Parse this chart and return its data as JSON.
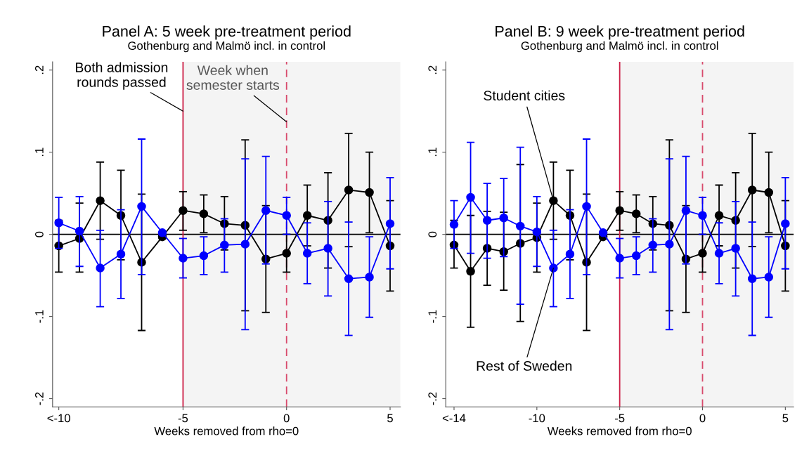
{
  "chart_data": [
    {
      "type": "line",
      "title": "Panel A: 5 week pre-treatment period",
      "subtitle": "Gothenburg and Malmö incl. in control",
      "xlabel": "Weeks removed from rho=0",
      "x": [
        -11,
        -10,
        -9,
        -8,
        -7,
        -6,
        -5,
        -4,
        -3,
        -2,
        -1,
        0,
        1,
        2,
        3,
        4,
        5
      ],
      "series": [
        {
          "color": "#000000",
          "values": [
            -0.014,
            -0.005,
            0.041,
            0.023,
            -0.034,
            -0.003,
            0.029,
            0.025,
            0.013,
            0.011,
            -0.03,
            -0.023,
            0.023,
            0.017,
            0.054,
            0.051,
            -0.014
          ],
          "errors": [
            [
              -0.046,
              0.017
            ],
            [
              -0.046,
              0.038
            ],
            [
              -0.006,
              0.088
            ],
            [
              -0.031,
              0.078
            ],
            [
              -0.117,
              0.049
            ],
            null,
            [
              0.005,
              0.052
            ],
            [
              0.002,
              0.048
            ],
            [
              -0.019,
              0.046
            ],
            [
              -0.093,
              0.115
            ],
            [
              -0.095,
              0.035
            ],
            [
              -0.046,
              0.0
            ],
            [
              -0.014,
              0.06
            ],
            [
              -0.041,
              0.075
            ],
            [
              -0.015,
              0.123
            ],
            [
              0.002,
              0.1
            ],
            [
              -0.069,
              0.041
            ]
          ]
        },
        {
          "color": "#0000ff",
          "values": [
            0.014,
            0.004,
            -0.041,
            -0.024,
            0.034,
            0.002,
            -0.029,
            -0.026,
            -0.013,
            -0.012,
            0.029,
            0.023,
            -0.023,
            -0.017,
            -0.054,
            -0.052,
            0.013
          ],
          "errors": [
            [
              -0.017,
              0.045
            ],
            [
              -0.039,
              0.046
            ],
            [
              -0.088,
              0.005
            ],
            [
              -0.078,
              0.03
            ],
            [
              -0.049,
              0.116
            ],
            null,
            [
              -0.053,
              -0.005
            ],
            [
              -0.049,
              -0.003
            ],
            [
              -0.046,
              0.019
            ],
            [
              -0.116,
              0.092
            ],
            [
              -0.036,
              0.095
            ],
            [
              0.0,
              0.045
            ],
            [
              -0.06,
              0.014
            ],
            [
              -0.075,
              0.04
            ],
            [
              -0.123,
              0.015
            ],
            [
              -0.101,
              -0.003
            ],
            [
              -0.042,
              0.069
            ]
          ]
        }
      ],
      "xlim": [
        -11.3,
        5.5
      ],
      "xticks": [
        {
          "value": -11,
          "label": "<-10"
        },
        -5,
        0,
        5
      ],
      "ylim": [
        -0.21,
        0.21
      ],
      "yticks": [
        {
          "value": -0.2,
          "label": "-.2"
        },
        {
          "value": -0.1,
          "label": "-.1"
        },
        0,
        {
          "value": 0.1,
          "label": ".1"
        },
        {
          "value": 0.2,
          "label": ".2"
        }
      ],
      "ref_lines": [
        {
          "axis": "y",
          "value": 0,
          "color": "#000000"
        },
        {
          "axis": "x",
          "value": -5,
          "color": "#cc1f45",
          "line_style": "solid"
        },
        {
          "axis": "x",
          "value": 0,
          "color": "#d84a6c",
          "line_style": "dashed"
        }
      ],
      "bands": [
        {
          "axis": "x",
          "from": -5,
          "to": 5.5,
          "color": "#f4f4f4"
        }
      ],
      "annotations": [
        {
          "text": "Both admission\nrounds passed",
          "x": -5,
          "y": 0.15
        },
        {
          "text": "Week when\nsemester starts",
          "x": 0,
          "y": 0.137
        }
      ],
      "marker": "circle",
      "line_style": "solid",
      "grid": false,
      "legend": false
    },
    {
      "type": "line",
      "title": "Panel B: 9 week pre-treatment period",
      "subtitle": "Gothenburg and Malmö incl. in control",
      "xlabel": "Weeks removed from rho=0",
      "x": [
        -15,
        -14,
        -13,
        -12,
        -11,
        -10,
        -9,
        -8,
        -7,
        -6,
        -5,
        -4,
        -3,
        -2,
        -1,
        0,
        1,
        2,
        3,
        4,
        5
      ],
      "series": [
        {
          "name": "Student cities",
          "color": "#000000",
          "values": [
            -0.013,
            -0.045,
            -0.017,
            -0.021,
            -0.011,
            -0.004,
            0.041,
            0.023,
            -0.034,
            -0.003,
            0.029,
            0.025,
            0.013,
            0.011,
            -0.03,
            -0.023,
            0.023,
            0.017,
            0.054,
            0.051,
            -0.014
          ],
          "errors": [
            [
              -0.041,
              0.017
            ],
            [
              -0.113,
              0.023
            ],
            [
              -0.062,
              0.028
            ],
            [
              -0.068,
              0.027
            ],
            [
              -0.106,
              0.085
            ],
            [
              -0.046,
              0.038
            ],
            [
              -0.006,
              0.088
            ],
            [
              -0.031,
              0.078
            ],
            [
              -0.117,
              0.049
            ],
            null,
            [
              0.005,
              0.052
            ],
            [
              0.002,
              0.048
            ],
            [
              -0.019,
              0.046
            ],
            [
              -0.093,
              0.115
            ],
            [
              -0.095,
              0.035
            ],
            [
              -0.046,
              0.0
            ],
            [
              -0.014,
              0.06
            ],
            [
              -0.041,
              0.075
            ],
            [
              -0.015,
              0.123
            ],
            [
              0.002,
              0.1
            ],
            [
              -0.069,
              0.041
            ]
          ]
        },
        {
          "name": "Rest of Sweden",
          "color": "#0000ff",
          "values": [
            0.012,
            0.045,
            0.017,
            0.02,
            0.01,
            0.003,
            -0.041,
            -0.024,
            0.034,
            0.002,
            -0.029,
            -0.026,
            -0.013,
            -0.012,
            0.029,
            0.023,
            -0.023,
            -0.017,
            -0.054,
            -0.052,
            0.013
          ],
          "errors": [
            [
              -0.017,
              0.041
            ],
            [
              -0.023,
              0.112
            ],
            [
              -0.029,
              0.062
            ],
            [
              -0.027,
              0.068
            ],
            [
              -0.085,
              0.106
            ],
            [
              -0.039,
              0.046
            ],
            [
              -0.088,
              0.005
            ],
            [
              -0.078,
              0.03
            ],
            [
              -0.049,
              0.116
            ],
            null,
            [
              -0.053,
              -0.005
            ],
            [
              -0.049,
              -0.003
            ],
            [
              -0.046,
              0.019
            ],
            [
              -0.116,
              0.092
            ],
            [
              -0.036,
              0.095
            ],
            [
              0.0,
              0.045
            ],
            [
              -0.06,
              0.014
            ],
            [
              -0.075,
              0.04
            ],
            [
              -0.123,
              0.015
            ],
            [
              -0.101,
              -0.003
            ],
            [
              -0.042,
              0.069
            ]
          ]
        }
      ],
      "xlim": [
        -15.5,
        5.5
      ],
      "xticks": [
        {
          "value": -15,
          "label": "<-14"
        },
        -10,
        -5,
        0,
        5
      ],
      "ylim": [
        -0.21,
        0.21
      ],
      "yticks": [
        {
          "value": -0.2,
          "label": "-.2"
        },
        {
          "value": -0.1,
          "label": "-.1"
        },
        0,
        {
          "value": 0.1,
          "label": ".1"
        },
        {
          "value": 0.2,
          "label": ".2"
        }
      ],
      "ref_lines": [
        {
          "axis": "y",
          "value": 0,
          "color": "#000000"
        },
        {
          "axis": "x",
          "value": -5,
          "color": "#cc1f45",
          "line_style": "solid"
        },
        {
          "axis": "x",
          "value": 0,
          "color": "#d84a6c",
          "line_style": "dashed"
        }
      ],
      "bands": [
        {
          "axis": "x",
          "from": -5,
          "to": 5.5,
          "color": "#f4f4f4"
        }
      ],
      "marker": "circle",
      "line_style": "solid",
      "grid": false,
      "legend": false
    }
  ]
}
